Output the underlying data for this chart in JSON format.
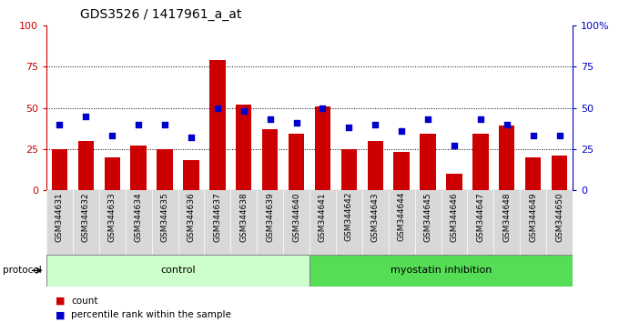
{
  "title": "GDS3526 / 1417961_a_at",
  "samples": [
    "GSM344631",
    "GSM344632",
    "GSM344633",
    "GSM344634",
    "GSM344635",
    "GSM344636",
    "GSM344637",
    "GSM344638",
    "GSM344639",
    "GSM344640",
    "GSM344641",
    "GSM344642",
    "GSM344643",
    "GSM344644",
    "GSM344645",
    "GSM344646",
    "GSM344647",
    "GSM344648",
    "GSM344649",
    "GSM344650"
  ],
  "count_values": [
    25,
    30,
    20,
    27,
    25,
    18,
    79,
    52,
    37,
    34,
    51,
    25,
    30,
    23,
    34,
    10,
    34,
    39,
    20,
    21
  ],
  "percentile_values": [
    40,
    45,
    33,
    40,
    40,
    32,
    50,
    48,
    43,
    41,
    50,
    38,
    40,
    36,
    43,
    27,
    43,
    40,
    33,
    33
  ],
  "control_count": 10,
  "myostatin_count": 10,
  "bar_color": "#cc0000",
  "dot_color": "#0000cc",
  "control_color": "#ccffcc",
  "myostatin_color": "#55dd55",
  "control_label": "control",
  "myostatin_label": "myostatin inhibition",
  "protocol_label": "protocol",
  "legend_count": "count",
  "legend_percentile": "percentile rank within the sample",
  "ylim_left": [
    0,
    100
  ],
  "ylim_right": [
    0,
    100
  ],
  "yticks": [
    0,
    25,
    50,
    75,
    100
  ],
  "bg_color": "#d8d8d8",
  "title_fontsize": 10,
  "axis_color_left": "#cc0000",
  "axis_color_right": "#0000cc"
}
